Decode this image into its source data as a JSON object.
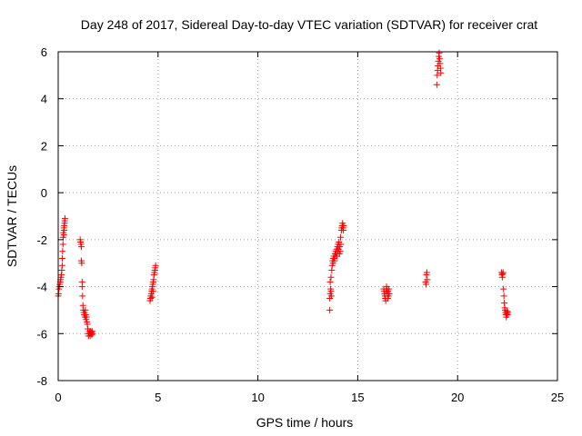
{
  "chart_data": {
    "type": "scatter",
    "title": "Day 248 of 2017, Sidereal Day-to-day VTEC variation (SDTVAR) for receiver crat",
    "xlabel": "GPS time / hours",
    "ylabel": "SDTVAR / TECUs",
    "xlim": [
      0,
      25
    ],
    "ylim": [
      -8,
      6
    ],
    "xticks": [
      0,
      5,
      10,
      15,
      20,
      25
    ],
    "yticks": [
      -8,
      -6,
      -4,
      -2,
      0,
      2,
      4,
      6
    ],
    "xtick_labels": [
      "0",
      "5",
      "10",
      "15",
      "20",
      "25"
    ],
    "ytick_labels": [
      "-8",
      "-6",
      "-4",
      "-2",
      "0",
      "2",
      "4",
      "6"
    ],
    "grid": true,
    "marker": "+",
    "color": "#ff0000",
    "series": [
      {
        "name": "SDTVAR",
        "points": [
          [
            0.0,
            -4.4
          ],
          [
            0.02,
            -4.3
          ],
          [
            0.04,
            -4.1
          ],
          [
            0.06,
            -4.0
          ],
          [
            0.08,
            -3.9
          ],
          [
            0.1,
            -3.8
          ],
          [
            0.12,
            -3.7
          ],
          [
            0.14,
            -3.6
          ],
          [
            0.16,
            -3.5
          ],
          [
            0.18,
            -3.3
          ],
          [
            0.2,
            -3.1
          ],
          [
            0.2,
            -2.8
          ],
          [
            0.22,
            -2.5
          ],
          [
            0.24,
            -2.2
          ],
          [
            0.25,
            -1.9
          ],
          [
            0.26,
            -1.7
          ],
          [
            0.28,
            -1.5
          ],
          [
            0.3,
            -1.4
          ],
          [
            0.32,
            -1.3
          ],
          [
            0.33,
            -1.2
          ],
          [
            0.34,
            -1.1
          ],
          [
            0.3,
            -1.6
          ],
          [
            0.28,
            -1.8
          ],
          [
            1.1,
            -2.0
          ],
          [
            1.12,
            -2.1
          ],
          [
            1.14,
            -2.2
          ],
          [
            1.16,
            -2.3
          ],
          [
            1.16,
            -2.9
          ],
          [
            1.18,
            -3.0
          ],
          [
            1.2,
            -3.8
          ],
          [
            1.2,
            -4.0
          ],
          [
            1.22,
            -4.4
          ],
          [
            1.24,
            -4.8
          ],
          [
            1.26,
            -5.0
          ],
          [
            1.28,
            -5.1
          ],
          [
            1.3,
            -5.2
          ],
          [
            1.32,
            -5.1
          ],
          [
            1.34,
            -5.3
          ],
          [
            1.36,
            -5.0
          ],
          [
            1.38,
            -5.2
          ],
          [
            1.4,
            -5.4
          ],
          [
            1.42,
            -5.3
          ],
          [
            1.44,
            -5.5
          ],
          [
            1.46,
            -5.6
          ],
          [
            1.48,
            -5.8
          ],
          [
            1.5,
            -6.0
          ],
          [
            1.52,
            -6.1
          ],
          [
            1.54,
            -6.0
          ],
          [
            1.56,
            -5.9
          ],
          [
            1.58,
            -6.0
          ],
          [
            1.6,
            -6.1
          ],
          [
            1.62,
            -5.9
          ],
          [
            1.64,
            -6.0
          ],
          [
            1.66,
            -5.95
          ],
          [
            1.68,
            -6.05
          ],
          [
            1.7,
            -5.9
          ],
          [
            1.72,
            -6.0
          ],
          [
            4.6,
            -4.6
          ],
          [
            4.62,
            -4.5
          ],
          [
            4.64,
            -4.4
          ],
          [
            4.66,
            -4.3
          ],
          [
            4.68,
            -4.2
          ],
          [
            4.7,
            -4.1
          ],
          [
            4.72,
            -4.0
          ],
          [
            4.74,
            -3.9
          ],
          [
            4.76,
            -3.8
          ],
          [
            4.78,
            -3.7
          ],
          [
            4.8,
            -3.5
          ],
          [
            4.82,
            -3.4
          ],
          [
            4.84,
            -3.3
          ],
          [
            4.86,
            -3.2
          ],
          [
            4.88,
            -3.1
          ],
          [
            4.7,
            -4.45
          ],
          [
            4.75,
            -4.2
          ],
          [
            13.6,
            -5.0
          ],
          [
            13.6,
            -4.5
          ],
          [
            13.62,
            -4.3
          ],
          [
            13.64,
            -4.1
          ],
          [
            13.66,
            -4.2
          ],
          [
            13.68,
            -4.4
          ],
          [
            13.62,
            -3.8
          ],
          [
            13.66,
            -3.6
          ],
          [
            13.7,
            -3.3
          ],
          [
            13.72,
            -3.1
          ],
          [
            13.74,
            -2.9
          ],
          [
            13.76,
            -3.0
          ],
          [
            13.78,
            -2.8
          ],
          [
            13.8,
            -2.7
          ],
          [
            13.82,
            -2.8
          ],
          [
            13.84,
            -2.9
          ],
          [
            13.86,
            -2.6
          ],
          [
            13.88,
            -2.7
          ],
          [
            13.9,
            -2.5
          ],
          [
            13.92,
            -2.6
          ],
          [
            13.94,
            -2.4
          ],
          [
            13.96,
            -2.7
          ],
          [
            13.98,
            -2.3
          ],
          [
            14.0,
            -2.5
          ],
          [
            14.02,
            -2.2
          ],
          [
            14.04,
            -2.4
          ],
          [
            14.06,
            -2.1
          ],
          [
            14.08,
            -2.6
          ],
          [
            14.1,
            -2.3
          ],
          [
            14.12,
            -2.5
          ],
          [
            14.14,
            -1.9
          ],
          [
            14.16,
            -2.2
          ],
          [
            14.18,
            -1.6
          ],
          [
            14.2,
            -1.5
          ],
          [
            14.22,
            -1.4
          ],
          [
            14.24,
            -1.3
          ],
          [
            14.26,
            -1.5
          ],
          [
            14.28,
            -1.6
          ],
          [
            14.3,
            -1.4
          ],
          [
            16.3,
            -4.1
          ],
          [
            16.32,
            -4.2
          ],
          [
            16.34,
            -4.3
          ],
          [
            16.36,
            -4.4
          ],
          [
            16.38,
            -4.5
          ],
          [
            16.4,
            -4.6
          ],
          [
            16.42,
            -4.2
          ],
          [
            16.44,
            -4.0
          ],
          [
            16.46,
            -4.1
          ],
          [
            16.48,
            -4.3
          ],
          [
            16.5,
            -4.5
          ],
          [
            16.52,
            -4.2
          ],
          [
            16.54,
            -4.4
          ],
          [
            16.56,
            -4.1
          ],
          [
            16.58,
            -4.3
          ],
          [
            18.4,
            -3.8
          ],
          [
            18.42,
            -3.9
          ],
          [
            18.44,
            -3.5
          ],
          [
            18.46,
            -3.4
          ],
          [
            18.48,
            -3.7
          ],
          [
            18.96,
            4.6
          ],
          [
            18.98,
            5.0
          ],
          [
            19.0,
            5.2
          ],
          [
            19.02,
            5.4
          ],
          [
            19.04,
            5.6
          ],
          [
            19.06,
            5.8
          ],
          [
            19.08,
            5.95
          ],
          [
            19.1,
            5.7
          ],
          [
            19.12,
            5.5
          ],
          [
            19.14,
            5.3
          ],
          [
            19.16,
            5.1
          ],
          [
            22.2,
            -3.4
          ],
          [
            22.22,
            -3.5
          ],
          [
            22.24,
            -3.6
          ],
          [
            22.26,
            -3.45
          ],
          [
            22.28,
            -3.4
          ],
          [
            22.3,
            -4.1
          ],
          [
            22.32,
            -4.4
          ],
          [
            22.34,
            -4.7
          ],
          [
            22.36,
            -4.9
          ],
          [
            22.38,
            -5.0
          ],
          [
            22.4,
            -5.1
          ],
          [
            22.42,
            -5.2
          ],
          [
            22.44,
            -5.3
          ],
          [
            22.46,
            -5.15
          ],
          [
            22.48,
            -5.05
          ],
          [
            22.5,
            -5.2
          ],
          [
            22.52,
            -5.1
          ]
        ]
      }
    ]
  }
}
